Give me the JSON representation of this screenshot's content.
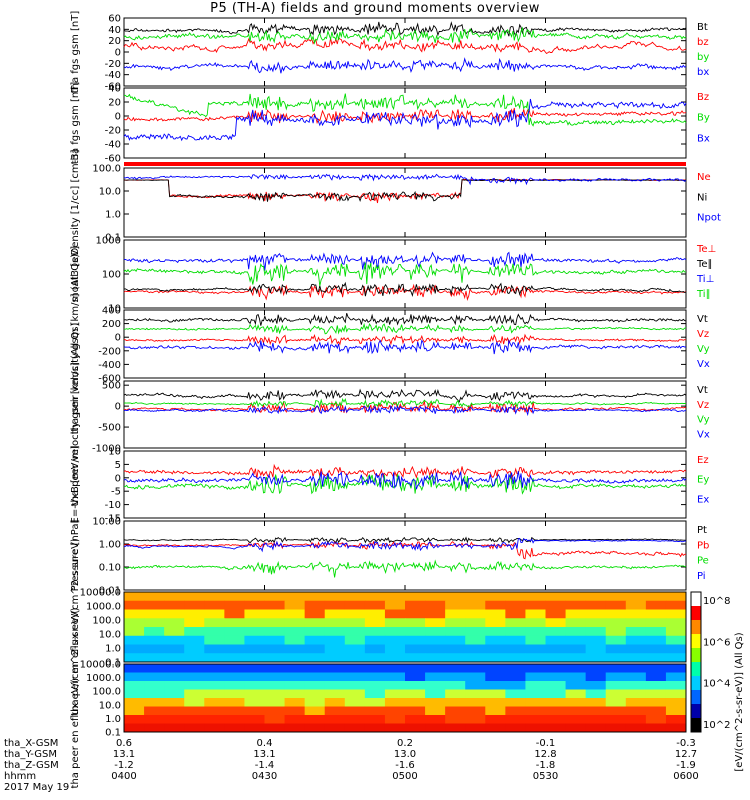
{
  "title": "P5 (TH-A) fields and ground moments overview",
  "colors": {
    "black": "#000000",
    "red": "#ff0000",
    "green": "#00dd00",
    "blue": "#0000ff"
  },
  "x_axis": {
    "ephemeris_labels": [
      "tha_X-GSM",
      "tha_Y-GSM",
      "tha_Z-GSM",
      "hhmm",
      "2017 May 19"
    ],
    "ticks": [
      {
        "x": "0.6",
        "y": "13.1",
        "z": "-1.2",
        "t": "0400"
      },
      {
        "x": "0.4",
        "y": "13.1",
        "z": "-1.4",
        "t": "0430"
      },
      {
        "x": "0.2",
        "y": "13.0",
        "z": "-1.6",
        "t": "0500"
      },
      {
        "x": "-0.1",
        "y": "12.8",
        "z": "-1.8",
        "t": "0530"
      },
      {
        "x": "-0.3",
        "y": "12.7",
        "z": "-1.9",
        "t": "0600"
      }
    ]
  },
  "chart_data": [
    {
      "type": "line",
      "ylabel": "tha fgs gsm [nT]",
      "ylim": [
        -60,
        60
      ],
      "yticks": [
        "60",
        "40",
        "20",
        "0",
        "-20",
        "-40",
        "-60"
      ],
      "series": [
        {
          "name": "Bt",
          "color": "#000000"
        },
        {
          "name": "bz",
          "color": "#ff0000"
        },
        {
          "name": "by",
          "color": "#00dd00"
        },
        {
          "name": "bx",
          "color": "#0000ff"
        }
      ]
    },
    {
      "type": "line",
      "ylabel": "tha fgs gsm [nT]",
      "ylim": [
        -60,
        40
      ],
      "yticks": [
        "40",
        "20",
        "0",
        "-20",
        "-40",
        "-60"
      ],
      "series": [
        {
          "name": "Bz",
          "color": "#ff0000"
        },
        {
          "name": "By",
          "color": "#00dd00"
        },
        {
          "name": "Bx",
          "color": "#0000ff"
        }
      ]
    },
    {
      "type": "line",
      "ylabel": "Density [1/cc] [cm-3]",
      "ylim": [
        0.1,
        100
      ],
      "yticks": [
        "100.0",
        "10.0",
        "1.0",
        "0.1"
      ],
      "series": [
        {
          "name": "Ne",
          "color": "#ff0000"
        },
        {
          "name": "Ni",
          "color": "#000000"
        },
        {
          "name": "Npot",
          "color": "#0000ff"
        }
      ]
    },
    {
      "type": "line",
      "ylabel": "moat3 [eV]",
      "ylim": [
        10,
        1000
      ],
      "yticks": [
        "1000",
        "100",
        "10"
      ],
      "series": [
        {
          "name": "Te⊥",
          "color": "#ff0000"
        },
        {
          "name": "Te∥",
          "color": "#000000"
        },
        {
          "name": "Ti⊥",
          "color": "#0000ff"
        },
        {
          "name": "Ti∥",
          "color": "#00dd00"
        }
      ]
    },
    {
      "type": "line",
      "ylabel": "tha peir velocity gsm [km/s] (All Qs)",
      "ylim": [
        -600,
        400
      ],
      "yticks": [
        "400",
        "200",
        "0",
        "-200",
        "-400",
        "-600"
      ],
      "series": [
        {
          "name": "Vt",
          "color": "#000000"
        },
        {
          "name": "Vz",
          "color": "#ff0000"
        },
        {
          "name": "Vy",
          "color": "#00dd00"
        },
        {
          "name": "Vx",
          "color": "#0000ff"
        }
      ]
    },
    {
      "type": "line",
      "ylabel": "tha peer velocity gsm [km/s] (All Qs)",
      "ylim": [
        -1000,
        600
      ],
      "yticks": [
        "500",
        "0",
        "-500",
        "-1000"
      ],
      "series": [
        {
          "name": "Vt",
          "color": "#000000"
        },
        {
          "name": "Vz",
          "color": "#ff0000"
        },
        {
          "name": "Vy",
          "color": "#00dd00"
        },
        {
          "name": "Vx",
          "color": "#0000ff"
        }
      ]
    },
    {
      "type": "line",
      "ylabel": "E=-VxB [mV/m]",
      "ylim": [
        -15,
        10
      ],
      "yticks": [
        "10",
        "5",
        "0",
        "-5",
        "-10",
        "-15"
      ],
      "series": [
        {
          "name": "Ez",
          "color": "#ff0000"
        },
        {
          "name": "Ey",
          "color": "#00dd00"
        },
        {
          "name": "Ex",
          "color": "#0000ff"
        }
      ]
    },
    {
      "type": "line",
      "ylabel": "Pressure [nPa]",
      "ylim": [
        0.01,
        10
      ],
      "yticks": [
        "10.00",
        "1.00",
        "0.10",
        "0.01"
      ],
      "series": [
        {
          "name": "Pt",
          "color": "#000000"
        },
        {
          "name": "Pb",
          "color": "#ff0000"
        },
        {
          "name": "Pe",
          "color": "#00dd00"
        },
        {
          "name": "Pi",
          "color": "#0000ff"
        }
      ]
    },
    {
      "type": "heatmap",
      "ylabel": "tha peir en eflux eV/(cm^2-s-sr-eV)",
      "ylim": [
        0.1,
        10000
      ],
      "yticks": [
        "10000.0",
        "1000.0",
        "100.0",
        "10.0",
        "1.0",
        "0.1"
      ]
    },
    {
      "type": "heatmap",
      "ylabel": "tha peer en eflux eV/(cm^2-s-sr-eV)",
      "ylim": [
        0.1,
        10000
      ],
      "yticks": [
        "10000.0",
        "1000.0",
        "100.0",
        "10.0",
        "1.0",
        "0.1"
      ]
    }
  ],
  "colorbar": {
    "ticks": [
      "10^8",
      "10^6",
      "10^4",
      "10^2"
    ],
    "label": "[eV/(cm^2-s-sr-eV)] (All Qs)"
  }
}
